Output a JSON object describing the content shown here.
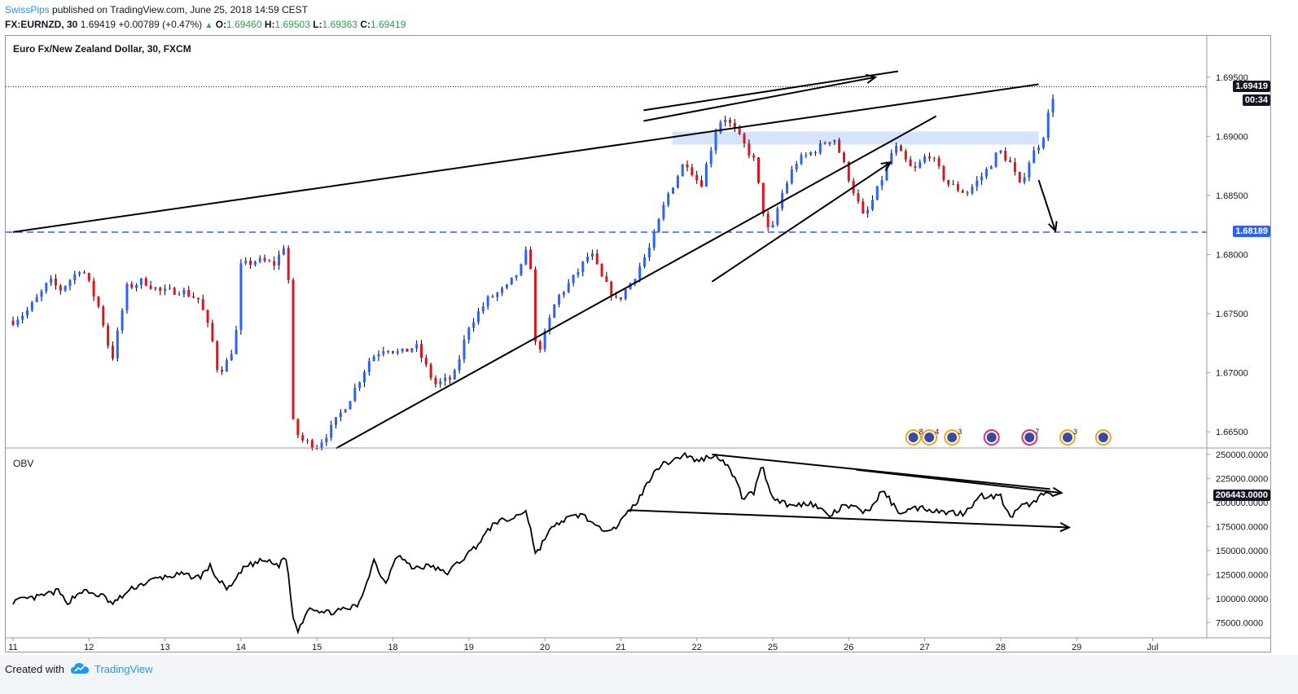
{
  "header": {
    "author": "SwissPips",
    "published_text": "published on TradingView.com, June 25, 2018 14:59 CEST",
    "symbol": "FX:EURNZD, 30",
    "last": "1.69419",
    "change": "+0.00789 (+0.47%)",
    "o_label": "O:",
    "o": "1.69460",
    "h_label": "H:",
    "h": "1.69503",
    "l_label": "L:",
    "l": "1.69363",
    "c_label": "C:",
    "c": "1.69419"
  },
  "footer": {
    "created_with": "Created with",
    "brand": "TradingView"
  },
  "colors": {
    "up": "#2962ff",
    "down": "#e0131c",
    "wick": "#000000",
    "hline": "#2962ff",
    "zone": "#d6e4fb",
    "obv_line": "#000000",
    "grid_border": "#9598a1"
  },
  "chart_data": [
    {
      "type": "candlestick",
      "title": "Euro Fx/New Zealand Dollar, 30, FXCM",
      "x_ticks": [
        "11",
        "12",
        "13",
        "14",
        "15",
        "18",
        "19",
        "20",
        "21",
        "22",
        "25",
        "26",
        "27",
        "28",
        "29",
        "Jul"
      ],
      "y_ticks": [
        "1.69500",
        "1.69000",
        "1.68500",
        "1.68000",
        "1.67500",
        "1.67000",
        "1.66500"
      ],
      "ylim": [
        1.6637,
        1.6985
      ],
      "grid": false,
      "current_price": "1.69419",
      "countdown": "00:34",
      "horizontal_level": "1.68189",
      "resistance_zone": [
        1.6893,
        1.6904
      ],
      "anchors": [
        {
          "day": 0.0,
          "price": 1.6744
        },
        {
          "day": 0.18,
          "price": 1.6752
        },
        {
          "day": 0.38,
          "price": 1.6768
        },
        {
          "day": 0.48,
          "price": 1.6778
        },
        {
          "day": 0.62,
          "price": 1.677
        },
        {
          "day": 0.8,
          "price": 1.6782
        },
        {
          "day": 0.9,
          "price": 1.679
        },
        {
          "day": 1.02,
          "price": 1.6772
        },
        {
          "day": 1.15,
          "price": 1.6752
        },
        {
          "day": 1.3,
          "price": 1.671
        },
        {
          "day": 1.5,
          "price": 1.6772
        },
        {
          "day": 1.72,
          "price": 1.6778
        },
        {
          "day": 1.95,
          "price": 1.6768
        },
        {
          "day": 2.2,
          "price": 1.677
        },
        {
          "day": 2.45,
          "price": 1.6762
        },
        {
          "day": 2.62,
          "price": 1.6728
        },
        {
          "day": 2.7,
          "price": 1.67
        },
        {
          "day": 2.85,
          "price": 1.6712
        },
        {
          "day": 2.95,
          "price": 1.6738
        },
        {
          "day": 3.0,
          "price": 1.679
        },
        {
          "day": 3.2,
          "price": 1.6795
        },
        {
          "day": 3.45,
          "price": 1.6792
        },
        {
          "day": 3.58,
          "price": 1.681
        },
        {
          "day": 3.62,
          "price": 1.6798
        },
        {
          "day": 3.64,
          "price": 1.672
        },
        {
          "day": 3.66,
          "price": 1.667
        },
        {
          "day": 3.7,
          "price": 1.6652
        },
        {
          "day": 3.8,
          "price": 1.6643
        },
        {
          "day": 4.0,
          "price": 1.6638
        },
        {
          "day": 4.2,
          "price": 1.6654
        },
        {
          "day": 4.45,
          "price": 1.668
        },
        {
          "day": 4.7,
          "price": 1.6712
        },
        {
          "day": 4.9,
          "price": 1.6722
        },
        {
          "day": 5.1,
          "price": 1.6716
        },
        {
          "day": 5.3,
          "price": 1.6723
        },
        {
          "day": 5.55,
          "price": 1.669
        },
        {
          "day": 5.8,
          "price": 1.6696
        },
        {
          "day": 6.0,
          "price": 1.674
        },
        {
          "day": 6.25,
          "price": 1.6762
        },
        {
          "day": 6.5,
          "price": 1.6772
        },
        {
          "day": 6.7,
          "price": 1.679
        },
        {
          "day": 6.8,
          "price": 1.6812
        },
        {
          "day": 6.85,
          "price": 1.6725
        },
        {
          "day": 6.95,
          "price": 1.6722
        },
        {
          "day": 7.15,
          "price": 1.6762
        },
        {
          "day": 7.4,
          "price": 1.6782
        },
        {
          "day": 7.6,
          "price": 1.6802
        },
        {
          "day": 7.75,
          "price": 1.678
        },
        {
          "day": 7.95,
          "price": 1.676
        },
        {
          "day": 8.15,
          "price": 1.6778
        },
        {
          "day": 8.4,
          "price": 1.6808
        },
        {
          "day": 8.6,
          "price": 1.6848
        },
        {
          "day": 8.85,
          "price": 1.688
        },
        {
          "day": 9.05,
          "price": 1.6858
        },
        {
          "day": 9.25,
          "price": 1.6905
        },
        {
          "day": 9.35,
          "price": 1.6918
        },
        {
          "day": 9.55,
          "price": 1.69
        },
        {
          "day": 9.75,
          "price": 1.688
        },
        {
          "day": 9.9,
          "price": 1.6828
        },
        {
          "day": 9.97,
          "price": 1.6815
        },
        {
          "day": 10.1,
          "price": 1.6848
        },
        {
          "day": 10.3,
          "price": 1.6878
        },
        {
          "day": 10.55,
          "price": 1.6888
        },
        {
          "day": 10.8,
          "price": 1.69
        },
        {
          "day": 11.0,
          "price": 1.6865
        },
        {
          "day": 11.2,
          "price": 1.683
        },
        {
          "day": 11.4,
          "price": 1.6858
        },
        {
          "day": 11.6,
          "price": 1.6892
        },
        {
          "day": 11.85,
          "price": 1.687
        },
        {
          "day": 12.05,
          "price": 1.6886
        },
        {
          "day": 12.3,
          "price": 1.686
        },
        {
          "day": 12.55,
          "price": 1.6852
        },
        {
          "day": 12.8,
          "price": 1.687
        },
        {
          "day": 12.98,
          "price": 1.6888
        },
        {
          "day": 13.12,
          "price": 1.6878
        },
        {
          "day": 13.25,
          "price": 1.6858
        },
        {
          "day": 13.4,
          "price": 1.6883
        },
        {
          "day": 13.55,
          "price": 1.6898
        },
        {
          "day": 13.65,
          "price": 1.6925
        },
        {
          "day": 13.72,
          "price": 1.6942
        }
      ],
      "annotations": [
        {
          "kind": "line",
          "from": {
            "day": 0.0,
            "price": 1.6819
          },
          "to": {
            "day": 13.5,
            "price": 1.6944
          }
        },
        {
          "kind": "arrow",
          "from": {
            "day": 8.3,
            "price": 1.6913
          },
          "to": {
            "day": 11.35,
            "price": 1.695
          }
        },
        {
          "kind": "line",
          "from": {
            "day": 8.3,
            "price": 1.6922
          },
          "to": {
            "day": 11.65,
            "price": 1.6955
          }
        },
        {
          "kind": "line",
          "from": {
            "day": 4.25,
            "price": 1.6636
          },
          "to": {
            "day": 12.15,
            "price": 1.6917
          }
        },
        {
          "kind": "arrow",
          "from": {
            "day": 9.2,
            "price": 1.6777
          },
          "to": {
            "day": 11.55,
            "price": 1.6878
          }
        },
        {
          "kind": "arrow",
          "from": {
            "day": 13.5,
            "price": 1.6863
          },
          "to": {
            "day": 13.72,
            "price": 1.682
          }
        }
      ],
      "event_markers": [
        "8",
        "4",
        "3",
        "",
        "7",
        "3",
        ""
      ]
    },
    {
      "type": "line",
      "title": "OBV",
      "series": [
        {
          "name": "OBV"
        }
      ],
      "y_ticks": [
        "250000.0000",
        "225000.0000",
        "200000.0000",
        "175000.0000",
        "150000.0000",
        "125000.0000",
        "100000.0000",
        "75000.0000"
      ],
      "ylim": [
        60000,
        255000
      ],
      "current_value": "206443.0000",
      "anchors": [
        {
          "day": 0.0,
          "value": 97000
        },
        {
          "day": 0.3,
          "value": 101000
        },
        {
          "day": 0.6,
          "value": 108000
        },
        {
          "day": 0.7,
          "value": 95000
        },
        {
          "day": 0.9,
          "value": 108000
        },
        {
          "day": 1.2,
          "value": 102000
        },
        {
          "day": 1.3,
          "value": 94000
        },
        {
          "day": 1.6,
          "value": 112000
        },
        {
          "day": 1.9,
          "value": 121000
        },
        {
          "day": 2.2,
          "value": 125000
        },
        {
          "day": 2.45,
          "value": 122000
        },
        {
          "day": 2.6,
          "value": 134000
        },
        {
          "day": 2.7,
          "value": 118000
        },
        {
          "day": 2.85,
          "value": 110000
        },
        {
          "day": 3.05,
          "value": 133000
        },
        {
          "day": 3.3,
          "value": 140000
        },
        {
          "day": 3.5,
          "value": 134000
        },
        {
          "day": 3.56,
          "value": 145000
        },
        {
          "day": 3.62,
          "value": 132000
        },
        {
          "day": 3.66,
          "value": 95000
        },
        {
          "day": 3.7,
          "value": 75000
        },
        {
          "day": 3.75,
          "value": 67000
        },
        {
          "day": 3.9,
          "value": 92000
        },
        {
          "day": 4.1,
          "value": 85000
        },
        {
          "day": 4.35,
          "value": 88000
        },
        {
          "day": 4.55,
          "value": 93000
        },
        {
          "day": 4.75,
          "value": 140000
        },
        {
          "day": 4.9,
          "value": 115000
        },
        {
          "day": 5.05,
          "value": 147000
        },
        {
          "day": 5.25,
          "value": 132000
        },
        {
          "day": 5.5,
          "value": 134000
        },
        {
          "day": 5.7,
          "value": 126000
        },
        {
          "day": 5.9,
          "value": 140000
        },
        {
          "day": 6.1,
          "value": 155000
        },
        {
          "day": 6.35,
          "value": 180000
        },
        {
          "day": 6.55,
          "value": 182000
        },
        {
          "day": 6.75,
          "value": 192000
        },
        {
          "day": 6.82,
          "value": 170000
        },
        {
          "day": 6.88,
          "value": 145000
        },
        {
          "day": 7.05,
          "value": 170000
        },
        {
          "day": 7.25,
          "value": 182000
        },
        {
          "day": 7.5,
          "value": 188000
        },
        {
          "day": 7.7,
          "value": 172000
        },
        {
          "day": 7.95,
          "value": 175000
        },
        {
          "day": 8.25,
          "value": 205000
        },
        {
          "day": 8.45,
          "value": 235000
        },
        {
          "day": 8.65,
          "value": 243000
        },
        {
          "day": 8.85,
          "value": 250000
        },
        {
          "day": 9.0,
          "value": 243000
        },
        {
          "day": 9.2,
          "value": 249000
        },
        {
          "day": 9.35,
          "value": 245000
        },
        {
          "day": 9.5,
          "value": 225000
        },
        {
          "day": 9.6,
          "value": 205000
        },
        {
          "day": 9.75,
          "value": 210000
        },
        {
          "day": 9.85,
          "value": 240000
        },
        {
          "day": 10.0,
          "value": 205000
        },
        {
          "day": 10.25,
          "value": 196000
        },
        {
          "day": 10.5,
          "value": 200000
        },
        {
          "day": 10.75,
          "value": 186000
        },
        {
          "day": 10.95,
          "value": 197000
        },
        {
          "day": 11.25,
          "value": 190000
        },
        {
          "day": 11.45,
          "value": 213000
        },
        {
          "day": 11.65,
          "value": 190000
        },
        {
          "day": 11.95,
          "value": 195000
        },
        {
          "day": 12.25,
          "value": 190000
        },
        {
          "day": 12.5,
          "value": 189000
        },
        {
          "day": 12.75,
          "value": 207000
        },
        {
          "day": 13.0,
          "value": 206000
        },
        {
          "day": 13.12,
          "value": 184000
        },
        {
          "day": 13.3,
          "value": 197000
        },
        {
          "day": 13.45,
          "value": 200000
        },
        {
          "day": 13.6,
          "value": 214000
        },
        {
          "day": 13.7,
          "value": 206443
        }
      ],
      "annotations": [
        {
          "kind": "line",
          "from": {
            "day": 9.2,
            "value": 250000
          },
          "to": {
            "day": 13.65,
            "value": 214000
          }
        },
        {
          "kind": "arrow",
          "from": {
            "day": 11.1,
            "value": 234000
          },
          "to": {
            "day": 13.8,
            "value": 210000
          }
        },
        {
          "kind": "arrow",
          "from": {
            "day": 8.1,
            "value": 192000
          },
          "to": {
            "day": 13.9,
            "value": 174000
          }
        }
      ]
    }
  ]
}
